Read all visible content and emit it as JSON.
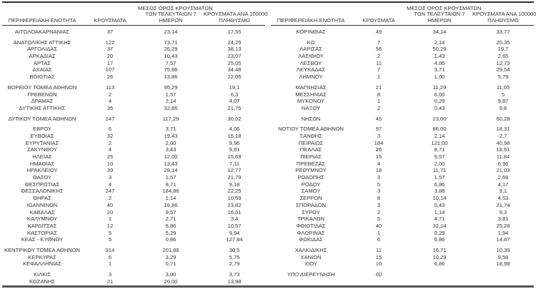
{
  "page": {
    "background": "#ffffff",
    "text_color": "#333333",
    "top_rule_color": "#333333",
    "bottom_rule_color": "#555555"
  },
  "table": {
    "headers": {
      "region": "ΠΕΡΙΦΕΡΕΙΑΚΗ ΕΝΟΤΗΤΑ",
      "cases": "ΚΡΟΥΣΜΑΤΑ",
      "avg7_lines": [
        "ΜΕΣΟΣ ΟΡΟΣ ΚΡΟΥΣΜΑΤΩΝ",
        "ΤΩΝ ΤΕΛΕΥΤΑΙΩΝ 7",
        "ΗΜΕΡΩΝ"
      ],
      "per100k_lines": [
        "ΚΡΟΥΣΜΑΤΑ ΑΝΑ 100000",
        "ΠΛΗΘΥΣΜΟ"
      ]
    },
    "left_bands": [
      [
        [
          "ΑΙΤΩΛΟΑΚΑΡΝΑΝΙΑΣ",
          "37",
          "23,14",
          "17,55"
        ]
      ],
      [
        [
          "ΑΝΑΤΟΛΙΚΗΣ ΑΤΤΙΚΗΣ",
          "122",
          "73,71",
          "24,29"
        ],
        [
          "ΑΡΓΟΛΙΔΑΣ",
          "37",
          "26,29",
          "38,13"
        ],
        [
          "ΑΡΚΑΔΙΑΣ",
          "20",
          "10,43",
          "23,07"
        ],
        [
          "ΑΡΤΑΣ",
          "17",
          "7,57",
          "25,05"
        ],
        [
          "ΑΧΑΪΑΣ",
          "107",
          "75,86",
          "34,48"
        ],
        [
          "ΒΟΙΩΤΙΑΣ",
          "26",
          "13,86",
          "22,05"
        ]
      ],
      [
        [
          "ΒΟΡΕΙΟΥ ΤΟΜΕΑ ΑΘΗΝΩΝ",
          "113",
          "95,29",
          "19,1"
        ],
        [
          "ΓΡΕΒΕΝΩΝ",
          "2",
          "1,57",
          "6,3"
        ],
        [
          "ΔΡΑΜΑΣ",
          "4",
          "2,14",
          "4,07"
        ],
        [
          "ΔΥΤΙΚΗΣ ΑΤΤΙΚΗΣ",
          "35",
          "32,86",
          "21,75"
        ]
      ],
      [
        [
          "ΔΥΤΙΚΟΥ ΤΟΜΕΑ ΑΘΗΝΩΝ",
          "147",
          "117,29",
          "30,02"
        ]
      ],
      [
        [
          "ΕΒΡΟΥ",
          "6",
          "3,71",
          "4,06"
        ],
        [
          "ΕΥΒΟΙΑΣ",
          "32",
          "19,43",
          "15,18"
        ],
        [
          "ΕΥΡΥΤΑΝΙΑΣ",
          "2",
          "2,00",
          "9,96"
        ],
        [
          "ΖΑΚΥΝΘΟΥ",
          "4",
          "3,43",
          "9,81"
        ],
        [
          "ΗΛΕΙΑΣ",
          "25",
          "12,00",
          "15,69"
        ],
        [
          "ΗΜΑΘΙΑΣ",
          "10",
          "13,43",
          "7,11"
        ],
        [
          "ΗΡΑΚΛΕΙΟΥ",
          "39",
          "28,14",
          "12,77"
        ],
        [
          "ΘΑΣΟΥ",
          "3",
          "1,57",
          "21,79"
        ],
        [
          "ΘΕΣΠΡΩΤΙΑΣ",
          "4",
          "8,71",
          "9,18"
        ],
        [
          "ΘΕΣΣΑΛΟΝΙΚΗΣ",
          "247",
          "184,86",
          "22,25"
        ],
        [
          "ΘΗΡΑΣ",
          "2",
          "1,14",
          "10,59"
        ],
        [
          "ΙΩΑΝΝΙΝΩΝ",
          "40",
          "19,86",
          "23,82"
        ],
        [
          "ΚΑΒΑΛΑΣ",
          "20",
          "9,57",
          "16,01"
        ],
        [
          "ΚΑΛΥΜΝΟΥ",
          "1",
          "2,71",
          "3,4"
        ],
        [
          "ΚΑΡΔΙΤΣΑΣ",
          "12",
          "6,86",
          "10,57"
        ],
        [
          "ΚΑΣΤΟΡΙΑΣ",
          "5",
          "5,29",
          "9,94"
        ],
        [
          "ΚΕΑΣ - ΚΥΘΝΟΥ",
          "5",
          "0,86",
          "127,84"
        ]
      ],
      [
        [
          "ΚΕΝΤΡΙΚΟΥ ΤΟΜΕΑ ΑΘΗΝΩΝ",
          "314",
          "201,86",
          "30,5"
        ],
        [
          "ΚΕΡΚΥΡΑΣ",
          "6",
          "3,29",
          "5,75"
        ],
        [
          "ΚΕΦΑΛΛΗΝΙΑΣ",
          "1",
          "0,71",
          "2,79"
        ]
      ],
      [
        [
          "ΚΙΛΚΙΣ",
          "3",
          "3,00",
          "3,73"
        ],
        [
          "ΚΟΖΑΝΗΣ",
          "21",
          "20,00",
          "13,98"
        ]
      ]
    ],
    "right_bands": [
      [
        [
          "ΚΟΡΙΝΘΙΑΣ",
          "49",
          "34,14",
          "33,77"
        ]
      ],
      [
        [
          "ΚΩ",
          "7",
          "2,14",
          "20,35"
        ],
        [
          "ΛΑΡΙΣΑΣ",
          "56",
          "50,29",
          "19,7"
        ],
        [
          "ΛΑΣΙΘΙΟΥ",
          "2",
          "1,43",
          "2,65"
        ],
        [
          "ΛΕΣΒΟΥ",
          "11",
          "4,86",
          "12,73"
        ],
        [
          "ΛΕΥΚΑΔΑΣ",
          "7",
          "3,71",
          "29,54"
        ],
        [
          "ΛΗΜΝΟΥ",
          "1",
          "1,00",
          "5,79"
        ]
      ],
      [
        [
          "ΜΑΓΝΗΣΙΑΣ",
          "21",
          "11,29",
          "11,05"
        ],
        [
          "ΜΕΣΣΗΝΙΑΣ",
          "8",
          "6,00",
          "5"
        ],
        [
          "ΜΥΚΟΝΟΥ",
          "1",
          "0,29",
          "9,87"
        ],
        [
          "ΝΑΞΟΥ",
          "2",
          "0,43",
          "9,6"
        ]
      ],
      [
        [
          "ΝΗΣΩΝ",
          "45",
          "23,00",
          "60,28"
        ]
      ],
      [
        [
          "ΝΟΤΙΟΥ ΤΟΜΕΑ ΑΘΗΝΩΝ",
          "97",
          "86,00",
          "18,31"
        ],
        [
          "ΞΑΝΘΗΣ",
          "3",
          "2,14",
          "2,7"
        ],
        [
          "ΠΕΙΡΑΙΩΣ",
          "184",
          "121,00",
          "40,98"
        ],
        [
          "ΠΕΛΛΑΣ",
          "26",
          "8,71",
          "18,61"
        ],
        [
          "ΠΙΕΡΙΑΣ",
          "15",
          "9,57",
          "11,84"
        ],
        [
          "ΠΡΕΒΕΖΑΣ",
          "4",
          "2,00",
          "6,96"
        ],
        [
          "ΡΕΘΥΜΝΟΥ",
          "18",
          "11,71",
          "21,03"
        ],
        [
          "ΡΟΔΟΠΗΣ",
          "3",
          "1,57",
          "2,68"
        ],
        [
          "ΡΟΔΟΥ",
          "5",
          "6,86",
          "4,17"
        ],
        [
          "ΣΑΜΟΥ",
          "3",
          "3,86",
          "9,1"
        ],
        [
          "ΣΕΡΡΩΝ",
          "8",
          "10,14",
          "4,53"
        ],
        [
          "ΣΠΟΡΑΔΩΝ",
          "3",
          "0,43",
          "21,74"
        ],
        [
          "ΣΥΡΟΥ",
          "2",
          "1,14",
          "9,3"
        ],
        [
          "ΤΡΙΚΑΛΩΝ",
          "5",
          "4,71",
          "3,81"
        ],
        [
          "ΦΘΙΩΤΙΔΑΣ",
          "40",
          "32,14",
          "25,28"
        ],
        [
          "ΦΛΩΡΙΝΑΣ",
          "1",
          "0,29",
          "1,94"
        ],
        [
          "ΦΩΚΙΔΑΣ",
          "6",
          "6,86",
          "14,87"
        ]
      ],
      [
        [
          "ΧΑΛΚΙΔΙΚΗΣ",
          "11",
          "16,71",
          "10,39"
        ],
        [
          "ΧΑΝΙΩΝ",
          "15",
          "10,29",
          "9,58"
        ],
        [
          "ΧΙΟΥ",
          "10",
          "6,86",
          "18,98"
        ]
      ],
      [
        {
          "cells": [
            "ΥΠΟ ΔΙΕΡΕΥΝΗΣΗ",
            "60",
            "",
            ""
          ],
          "style": "italic"
        }
      ]
    ]
  }
}
